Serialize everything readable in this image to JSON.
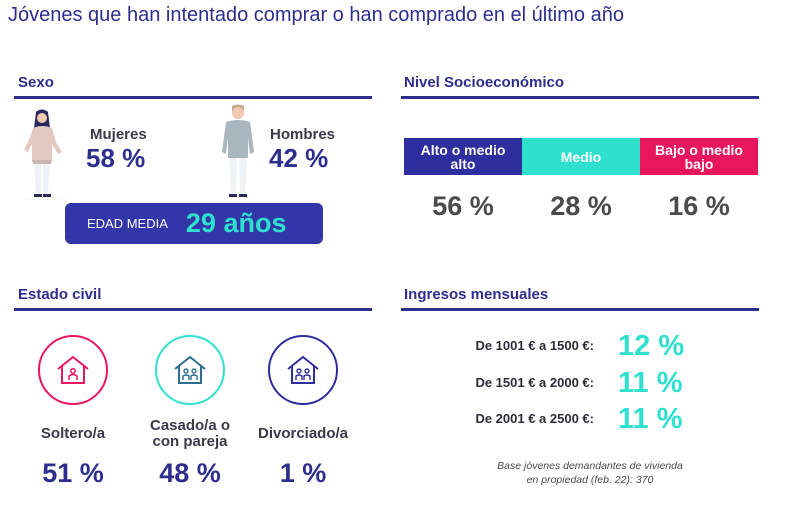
{
  "title": "Jóvenes que han intentado comprar o han comprado en el último año",
  "sexo": {
    "title": "Sexo",
    "female": {
      "label": "Mujeres",
      "value": "58 %"
    },
    "male": {
      "label": "Hombres",
      "value": "42 %"
    },
    "age": {
      "label": "EDAD MEDIA",
      "value": "29 años"
    }
  },
  "nivel": {
    "title": "Nivel Socioeconómico",
    "segments": [
      {
        "label": "Alto o medio alto",
        "value": "56 %",
        "color": "#2e2e9e"
      },
      {
        "label": "Medio",
        "value": "28 %",
        "color": "#2fe0cf"
      },
      {
        "label": "Bajo o medio bajo",
        "value": "16 %",
        "color": "#e8175d"
      }
    ]
  },
  "civil": {
    "title": "Estado civil",
    "items": [
      {
        "label": "Soltero/a",
        "value": "51 %",
        "color": "#e8175d",
        "icon": "house-single-icon"
      },
      {
        "label": "Casado/a o con pareja",
        "value": "48 %",
        "color": "#2fe0cf",
        "icon": "house-couple-icon"
      },
      {
        "label": "Divorciado/a",
        "value": "1 %",
        "color": "#2e2e9e",
        "icon": "house-couple-icon"
      }
    ]
  },
  "ingresos": {
    "title": "Ingresos mensuales",
    "rows": [
      {
        "label": "De 1001 € a 1500 €:",
        "value": "12 %"
      },
      {
        "label": "De 1501 € a 2000 €:",
        "value": "11 %"
      },
      {
        "label": "De 2001 € a 2500 €:",
        "value": "11 %"
      }
    ],
    "note_line1": "Base jóvenes demandantes de vivienda",
    "note_line2": "en propiedad (feb. 22): 370"
  }
}
